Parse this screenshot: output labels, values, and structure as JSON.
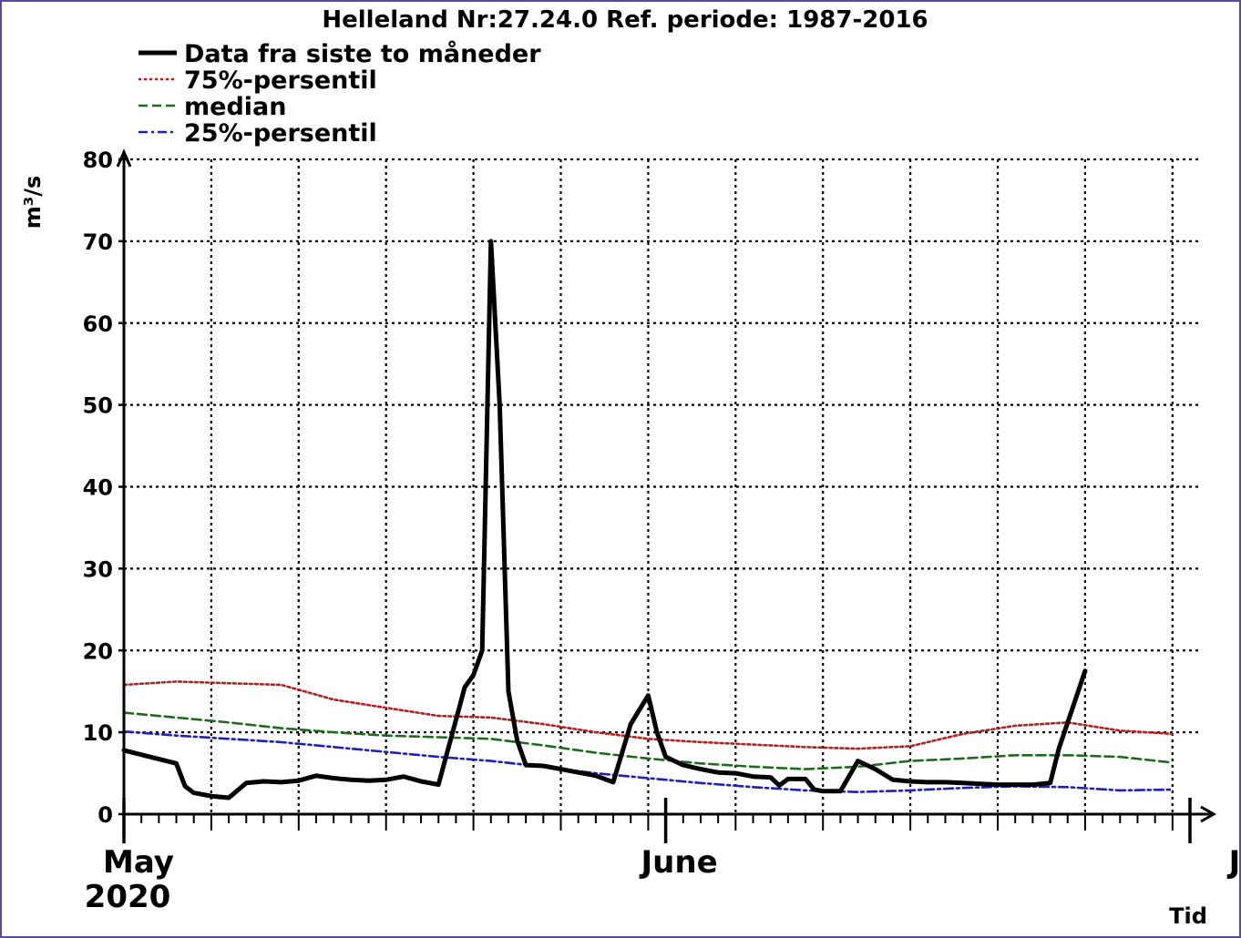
{
  "chart_data": {
    "type": "line",
    "title": "Helleland Nr:27.24.0 Ref. periode: 1987-2016",
    "ylabel": "m³/s",
    "xlabel": "Tid",
    "ylim": [
      0,
      80
    ],
    "yticks": [
      0,
      10,
      20,
      30,
      40,
      50,
      60,
      70,
      80
    ],
    "xlim": [
      "2020-05-01",
      "2020-07-01"
    ],
    "x_month_labels": [
      {
        "date": "2020-05-01",
        "label": "May",
        "year": "2020"
      },
      {
        "date": "2020-06-01",
        "label": "June",
        "year": ""
      },
      {
        "date": "2020-07-01",
        "label": "July",
        "year": ""
      }
    ],
    "grid": true,
    "legend_placement": "top-left",
    "series": [
      {
        "name": "Data fra siste to måneder",
        "color": "#000000",
        "style": "solid",
        "x": [
          "2020-05-01",
          "2020-05-04",
          "2020-05-04T12",
          "2020-05-05",
          "2020-05-06",
          "2020-05-07",
          "2020-05-08",
          "2020-05-09",
          "2020-05-10",
          "2020-05-11",
          "2020-05-12",
          "2020-05-13",
          "2020-05-14",
          "2020-05-15",
          "2020-05-16",
          "2020-05-17",
          "2020-05-18",
          "2020-05-19",
          "2020-05-20",
          "2020-05-20T12",
          "2020-05-21",
          "2020-05-21T12",
          "2020-05-22",
          "2020-05-22T12",
          "2020-05-23",
          "2020-05-23T12",
          "2020-05-24",
          "2020-05-25",
          "2020-05-26",
          "2020-05-27",
          "2020-05-28",
          "2020-05-29",
          "2020-05-30",
          "2020-05-31",
          "2020-05-31T12",
          "2020-06-01",
          "2020-06-02",
          "2020-06-03",
          "2020-06-03T12",
          "2020-06-04",
          "2020-06-05",
          "2020-06-06",
          "2020-06-07",
          "2020-06-07T12",
          "2020-06-08",
          "2020-06-09",
          "2020-06-09T12",
          "2020-06-10",
          "2020-06-11",
          "2020-06-12",
          "2020-06-13",
          "2020-06-14",
          "2020-06-15",
          "2020-06-16",
          "2020-06-17",
          "2020-06-18",
          "2020-06-19",
          "2020-06-20",
          "2020-06-21",
          "2020-06-22",
          "2020-06-23",
          "2020-06-23T12",
          "2020-06-25",
          "2020-06-26",
          "2020-06-27",
          "2020-06-28",
          "2020-06-29",
          "2020-06-29T12",
          "2020-06-30",
          "2020-06-30T12",
          "2020-07-01"
        ],
        "values": [
          7.8,
          6.2,
          3.4,
          2.6,
          2.2,
          2.0,
          3.8,
          4.0,
          3.9,
          4.1,
          4.7,
          4.4,
          4.2,
          4.1,
          4.2,
          4.6,
          4.0,
          3.6,
          11.5,
          15.5,
          17.0,
          20.0,
          70.0,
          50.0,
          15.0,
          9.0,
          6.0,
          5.9,
          5.5,
          5.1,
          4.7,
          3.9,
          11.0,
          14.5,
          10.0,
          7.0,
          6.0,
          5.5,
          5.3,
          5.1,
          5.0,
          4.6,
          4.5,
          3.5,
          4.3,
          4.3,
          3.0,
          2.8,
          2.8,
          6.5,
          5.5,
          4.2,
          4.0,
          3.9,
          3.9,
          3.8,
          3.7,
          3.6,
          3.6,
          3.6,
          3.8,
          8.0,
          17.5,
          null,
          null,
          null,
          null,
          null,
          null,
          null,
          null
        ]
      },
      {
        "name": "75%-persentil",
        "color": "#b22222",
        "style": "dotted",
        "x": [
          "2020-05-01",
          "2020-05-04",
          "2020-05-07",
          "2020-05-10",
          "2020-05-13",
          "2020-05-16",
          "2020-05-19",
          "2020-05-22",
          "2020-05-25",
          "2020-05-28",
          "2020-05-31",
          "2020-06-03",
          "2020-06-06",
          "2020-06-09",
          "2020-06-12",
          "2020-06-15",
          "2020-06-18",
          "2020-06-21",
          "2020-06-24",
          "2020-06-27",
          "2020-06-30"
        ],
        "values": [
          15.8,
          16.2,
          16.0,
          15.8,
          14.0,
          13.0,
          12.0,
          11.8,
          11.0,
          10.0,
          9.2,
          8.8,
          8.5,
          8.2,
          8.0,
          8.3,
          9.8,
          10.8,
          11.2,
          10.2,
          9.8
        ]
      },
      {
        "name": "median",
        "color": "#1e6b1e",
        "style": "dashed",
        "x": [
          "2020-05-01",
          "2020-05-04",
          "2020-05-07",
          "2020-05-10",
          "2020-05-13",
          "2020-05-16",
          "2020-05-19",
          "2020-05-22",
          "2020-05-25",
          "2020-05-28",
          "2020-05-31",
          "2020-06-03",
          "2020-06-06",
          "2020-06-09",
          "2020-06-12",
          "2020-06-15",
          "2020-06-18",
          "2020-06-21",
          "2020-06-24",
          "2020-06-27",
          "2020-06-30"
        ],
        "values": [
          12.4,
          11.8,
          11.2,
          10.5,
          10.0,
          9.6,
          9.4,
          9.2,
          8.4,
          7.5,
          6.8,
          6.2,
          5.8,
          5.5,
          5.8,
          6.5,
          6.8,
          7.2,
          7.2,
          7.0,
          6.3
        ]
      },
      {
        "name": "25%-persentil",
        "color": "#1f1fbf",
        "style": "dashdot",
        "x": [
          "2020-05-01",
          "2020-05-04",
          "2020-05-07",
          "2020-05-10",
          "2020-05-13",
          "2020-05-16",
          "2020-05-19",
          "2020-05-22",
          "2020-05-25",
          "2020-05-28",
          "2020-05-31",
          "2020-06-03",
          "2020-06-06",
          "2020-06-09",
          "2020-06-12",
          "2020-06-15",
          "2020-06-18",
          "2020-06-21",
          "2020-06-24",
          "2020-06-27",
          "2020-06-30"
        ],
        "values": [
          10.1,
          9.6,
          9.2,
          8.8,
          8.2,
          7.6,
          7.0,
          6.5,
          5.8,
          5.0,
          4.4,
          3.8,
          3.3,
          2.9,
          2.7,
          2.9,
          3.2,
          3.4,
          3.3,
          2.9,
          3.0
        ]
      }
    ]
  }
}
